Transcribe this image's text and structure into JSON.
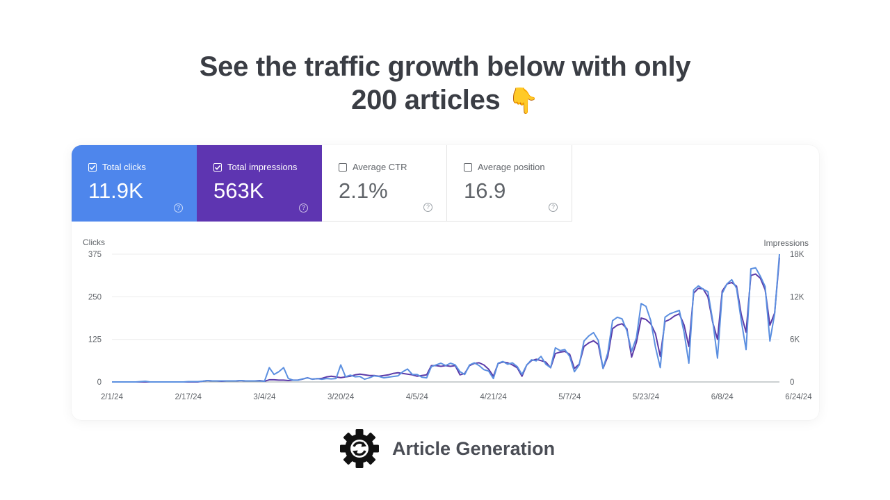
{
  "headline": {
    "line1": "See the traffic growth below with only",
    "line2": "200 articles",
    "emoji": "👇"
  },
  "metrics": [
    {
      "label": "Total clicks",
      "value": "11.9K",
      "checked": true,
      "color": "#4e86ec"
    },
    {
      "label": "Total impressions",
      "value": "563K",
      "checked": true,
      "color": "#5e35b1"
    },
    {
      "label": "Average CTR",
      "value": "2.1%",
      "checked": false
    },
    {
      "label": "Average position",
      "value": "16.9",
      "checked": false
    }
  ],
  "brand": {
    "name": "Article Generation",
    "icon": "gear-sync-icon"
  },
  "chart_data": {
    "type": "line",
    "y_left_label": "Clicks",
    "y_right_label": "Impressions",
    "y_left_ticks": [
      "375",
      "250",
      "125",
      "0"
    ],
    "y_right_ticks": [
      "18K",
      "12K",
      "6K",
      "0"
    ],
    "y_left_range": [
      0,
      375
    ],
    "y_right_range": [
      0,
      18000
    ],
    "x_ticks": [
      "2/1/24",
      "2/17/24",
      "3/4/24",
      "3/20/24",
      "4/5/24",
      "4/21/24",
      "5/7/24",
      "5/23/24",
      "6/8/24",
      "6/24/24"
    ],
    "x_start": "2024-02-01",
    "grid": true,
    "series": [
      {
        "name": "Clicks",
        "axis": "left",
        "color": "#5b8fe0",
        "values": [
          0,
          0,
          0,
          0,
          0,
          0,
          1,
          2,
          0,
          0,
          0,
          0,
          0,
          0,
          0,
          0,
          1,
          1,
          1,
          2,
          4,
          3,
          3,
          3,
          3,
          3,
          3,
          4,
          3,
          3,
          3,
          3,
          2,
          42,
          22,
          30,
          42,
          10,
          5,
          5,
          9,
          12,
          8,
          10,
          8,
          10,
          9,
          10,
          50,
          15,
          20,
          15,
          16,
          8,
          12,
          18,
          16,
          12,
          14,
          16,
          18,
          30,
          38,
          22,
          22,
          14,
          12,
          45,
          50,
          55,
          48,
          55,
          50,
          30,
          22,
          50,
          56,
          48,
          36,
          32,
          10,
          55,
          60,
          52,
          56,
          45,
          22,
          50,
          65,
          62,
          75,
          52,
          42,
          100,
          92,
          95,
          75,
          30,
          50,
          120,
          135,
          145,
          122,
          40,
          85,
          180,
          190,
          185,
          150,
          90,
          130,
          230,
          222,
          180,
          102,
          42,
          190,
          200,
          205,
          210,
          145,
          55,
          270,
          282,
          272,
          265,
          180,
          70,
          260,
          288,
          300,
          275,
          180,
          95,
          332,
          335,
          310,
          280,
          120,
          200,
          375
        ]
      },
      {
        "name": "Impressions",
        "axis": "right",
        "color": "#5b3aa8",
        "values": [
          0,
          0,
          0,
          0,
          0,
          0,
          0,
          0,
          0,
          0,
          0,
          0,
          0,
          0,
          0,
          0,
          0,
          0,
          0,
          100,
          200,
          150,
          150,
          100,
          150,
          150,
          150,
          200,
          150,
          150,
          150,
          200,
          100,
          300,
          300,
          250,
          250,
          200,
          250,
          250,
          400,
          600,
          400,
          450,
          500,
          700,
          800,
          700,
          600,
          700,
          800,
          1000,
          1100,
          1000,
          900,
          900,
          800,
          900,
          1000,
          1200,
          1300,
          1200,
          1100,
          1000,
          800,
          900,
          1000,
          2300,
          2300,
          2200,
          2300,
          2200,
          2300,
          1000,
          1200,
          2300,
          2600,
          2700,
          2400,
          1800,
          800,
          2600,
          2800,
          2700,
          2400,
          2000,
          800,
          2400,
          3000,
          3200,
          3000,
          2800,
          2000,
          4000,
          4200,
          4300,
          3900,
          1900,
          2500,
          5000,
          5500,
          5800,
          5300,
          1900,
          3600,
          7500,
          8000,
          8200,
          7500,
          3500,
          5600,
          9000,
          8800,
          8200,
          6800,
          3600,
          8500,
          8800,
          9300,
          9600,
          8000,
          5000,
          12500,
          13200,
          13100,
          12000,
          8400,
          6000,
          12800,
          13800,
          14000,
          13500,
          9500,
          7000,
          15000,
          15200,
          14600,
          13000,
          8000,
          9700,
          17500
        ]
      }
    ]
  }
}
